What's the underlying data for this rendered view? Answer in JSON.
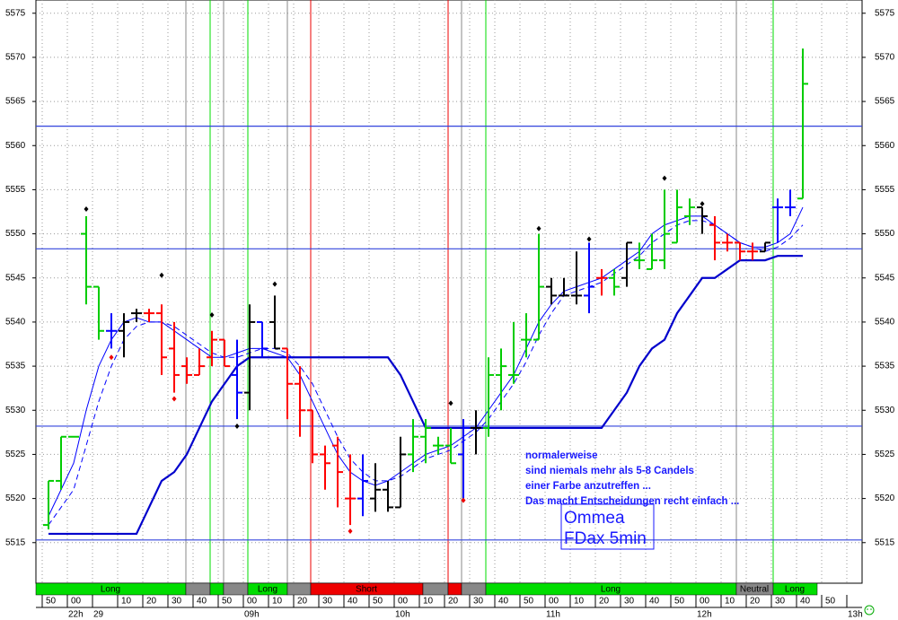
{
  "chart_data": {
    "type": "ohlc",
    "ylim": [
      5510.4,
      5576.5
    ],
    "yticks": [
      5515,
      5520,
      5525,
      5530,
      5535,
      5540,
      5545,
      5550,
      5555,
      5560,
      5565,
      5570,
      5575
    ],
    "grid": true,
    "categories": [
      "50",
      null,
      "00",
      null,
      null,
      null,
      "10",
      null,
      "20",
      null,
      "30",
      null,
      "40",
      null,
      "50",
      null,
      "00",
      null,
      "10",
      null,
      "20",
      null,
      "30",
      null,
      "40",
      null,
      "50",
      null,
      "00",
      null,
      "10",
      null,
      "20",
      null,
      "30",
      null,
      "40",
      null,
      "50",
      null,
      "00",
      null,
      "10",
      null,
      "20",
      null,
      "30",
      null,
      "40",
      null,
      "50",
      null,
      "00",
      null,
      "10",
      null,
      "20",
      null,
      "30",
      null,
      "40",
      null,
      "50",
      null,
      null,
      null
    ],
    "hour_labels": [
      null,
      null,
      "22h",
      null,
      "29",
      null,
      null,
      null,
      null,
      null,
      null,
      null,
      null,
      null,
      null,
      null,
      "09h",
      null,
      null,
      null,
      null,
      null,
      null,
      null,
      null,
      null,
      null,
      null,
      "10h",
      null,
      null,
      null,
      null,
      null,
      null,
      null,
      null,
      null,
      null,
      null,
      "11h",
      null,
      null,
      null,
      null,
      null,
      null,
      null,
      null,
      null,
      null,
      null,
      "12h",
      null,
      null,
      null,
      null,
      null,
      null,
      null,
      null,
      null,
      null,
      null,
      "13h",
      null
    ],
    "ohlc": [
      [
        5517,
        5522,
        5516.5,
        5522
      ],
      [
        5522,
        5527,
        5521,
        5527
      ],
      [
        5527,
        5527,
        5527,
        5527
      ],
      [
        5550,
        5552,
        5542,
        5544
      ],
      [
        5544,
        5544,
        5538,
        5539
      ],
      [
        5539,
        5541,
        5537,
        5539
      ],
      [
        5539,
        5541,
        5536,
        5540
      ],
      [
        5541,
        5541.5,
        5540,
        5541
      ],
      [
        5541,
        5541.5,
        5540,
        5541
      ],
      [
        5541,
        5542,
        5534,
        5536
      ],
      [
        5537,
        5540,
        5532,
        5534
      ],
      [
        5535,
        5536,
        5533,
        5534
      ],
      [
        5534,
        5537,
        5534,
        5535
      ],
      [
        5536,
        5539,
        5535,
        5538
      ],
      [
        5538,
        5538,
        5535,
        5535
      ],
      [
        5534,
        5538,
        5529,
        5532
      ],
      [
        5532,
        5542,
        5530,
        5540
      ],
      [
        5540,
        5540,
        5536,
        5537
      ],
      [
        5540,
        5543,
        5537,
        5537
      ],
      [
        5537,
        5537,
        5529,
        5533
      ],
      [
        5533,
        5535,
        5527,
        5530
      ],
      [
        5530,
        5530,
        5524,
        5525
      ],
      [
        5525,
        5526,
        5521,
        5524
      ],
      [
        5526,
        5527,
        5519,
        5523
      ],
      [
        5520,
        5525,
        5517,
        5520
      ],
      [
        5520,
        5525,
        5518,
        5522
      ],
      [
        5520,
        5524,
        5518.5,
        5521
      ],
      [
        5521,
        5522,
        5518.5,
        5519
      ],
      [
        5519,
        5527,
        5519,
        5525
      ],
      [
        5525,
        5529,
        5523,
        5527
      ],
      [
        5527,
        5529,
        5524,
        5528
      ],
      [
        5526,
        5527,
        5525,
        5526
      ],
      [
        5526,
        5528,
        5524,
        5524
      ],
      [
        5525,
        5529,
        5520,
        5528
      ],
      [
        5528,
        5530,
        5525,
        5528
      ],
      [
        5528,
        5536,
        5527,
        5534
      ],
      [
        5534,
        5537,
        5530,
        5535
      ],
      [
        5534,
        5540,
        5533,
        5534
      ],
      [
        5538,
        5541,
        5536,
        5538
      ],
      [
        5538,
        5550,
        5538,
        5544
      ],
      [
        5544,
        5545,
        5542,
        5543
      ],
      [
        5543,
        5545,
        5543,
        5543
      ],
      [
        5543,
        5548,
        5542,
        5543
      ],
      [
        5543,
        5549,
        5541,
        5544
      ],
      [
        5545,
        5546,
        5543,
        5545
      ],
      [
        5545,
        5546,
        5543,
        5544
      ],
      [
        5545,
        5549,
        5544,
        5549
      ],
      [
        5547,
        5549,
        5546,
        5547
      ],
      [
        5546,
        5550,
        5546,
        5547
      ],
      [
        5547,
        5555,
        5546,
        5550
      ],
      [
        5549,
        5555,
        5549,
        5553
      ],
      [
        5552,
        5554,
        5551,
        5553
      ],
      [
        5553,
        5553,
        5550,
        5552
      ],
      [
        5551,
        5552,
        5547,
        5549
      ],
      [
        5549,
        5550,
        5548,
        5549
      ],
      [
        5549,
        5549,
        5547,
        5548
      ],
      [
        5548,
        5549,
        5547,
        5548
      ],
      [
        5548,
        5549,
        5548,
        5549
      ],
      [
        5553,
        5554,
        5549,
        5553
      ],
      [
        5553,
        5555,
        5552,
        5553
      ],
      [
        5554,
        5571,
        5554,
        5567
      ],
      null,
      null,
      null,
      null,
      null
    ],
    "colors": [
      "#00cc00",
      "#00cc00",
      "#00cc00",
      "#00cc00",
      "#00cc00",
      "#0000ff",
      "#000000",
      "#000000",
      "#ff0000",
      "#ff0000",
      "#ff0000",
      "#ff0000",
      "#ff0000",
      "#ff0000",
      "#ff0000",
      "#0000ff",
      "#000000",
      "#0000ff",
      "#000000",
      "#ff0000",
      "#ff0000",
      "#ff0000",
      "#ff0000",
      "#ff0000",
      "#ff0000",
      "#0000ff",
      "#000000",
      "#000000",
      "#000000",
      "#00cc00",
      "#00cc00",
      "#00cc00",
      "#00cc00",
      "#0000ff",
      "#000000",
      "#00cc00",
      "#00cc00",
      "#00cc00",
      "#00cc00",
      "#00cc00",
      "#000000",
      "#000000",
      "#000000",
      "#0000ff",
      "#ff0000",
      "#00cc00",
      "#000000",
      "#00cc00",
      "#00cc00",
      "#00cc00",
      "#00cc00",
      "#00cc00",
      "#000000",
      "#ff0000",
      "#ff0000",
      "#ff0000",
      "#ff0000",
      "#000000",
      "#0000ff",
      "#0000ff",
      "#00cc00",
      null,
      null,
      null,
      null,
      null
    ],
    "ma_fast": {
      "color": "#0000ff",
      "values": [
        5518,
        5521,
        5524,
        5530,
        5535,
        5538,
        5540,
        5540.5,
        5540,
        5540,
        5539,
        5538,
        5537,
        5536,
        5536,
        5536.5,
        5537,
        5537,
        5536.5,
        5536,
        5534,
        5531,
        5528,
        5525,
        5523,
        5522,
        5521.5,
        5522,
        5523,
        5524,
        5525,
        5525.5,
        5526,
        5527,
        5528,
        5530,
        5532,
        5534,
        5537,
        5540,
        5542,
        5543.5,
        5544,
        5544.5,
        5545,
        5546,
        5547,
        5548,
        5550,
        5551,
        5551.5,
        5552,
        5552,
        5551,
        5550,
        5549,
        5548.5,
        5548.5,
        5549,
        5550,
        5553,
        null,
        null,
        null,
        null,
        null
      ]
    },
    "ma_slow": {
      "color": "#0000ff",
      "dashed": true,
      "values": [
        5517,
        5519,
        5521,
        5526,
        5531,
        5535,
        5538,
        5539.5,
        5540,
        5540,
        5539.5,
        5538.5,
        5537.5,
        5536.5,
        5536,
        5536,
        5536.5,
        5537,
        5537,
        5536.5,
        5535,
        5533,
        5530,
        5527,
        5524.5,
        5523,
        5522,
        5522,
        5522.5,
        5523.5,
        5524.5,
        5525,
        5525.5,
        5526.5,
        5527.5,
        5529,
        5531,
        5533,
        5535.5,
        5538.5,
        5541,
        5543,
        5543.5,
        5544,
        5544.5,
        5545.5,
        5546.5,
        5547.5,
        5549,
        5550,
        5551,
        5551.5,
        5551.5,
        5551,
        5550,
        5549,
        5548.5,
        5548,
        5548.5,
        5549.5,
        5551,
        null,
        null,
        null,
        null,
        null
      ]
    },
    "trend": {
      "color": "#0000cc",
      "values": [
        5516,
        5516,
        5516,
        5516,
        5516,
        5516,
        5516,
        5516,
        5519,
        5522,
        5523,
        5525,
        5528,
        5531,
        5533,
        5535,
        5536,
        5536,
        5536,
        5536,
        5536,
        5536,
        5536,
        5536,
        5536,
        5536,
        5536,
        5536,
        5534,
        5531,
        5528,
        5528,
        5528,
        5528,
        5528,
        5528,
        5528,
        5528,
        5528,
        5528,
        5528,
        5528,
        5528,
        5528,
        5528,
        5530,
        5532,
        5535,
        5537,
        5538,
        5541,
        5543,
        5545,
        5545,
        5546,
        5547,
        5547,
        5547,
        5547.5,
        5547.5,
        5547.5,
        null,
        null,
        null,
        null,
        null
      ]
    },
    "markers_black": [
      null,
      null,
      null,
      5552.8,
      null,
      null,
      null,
      null,
      null,
      5545.3,
      null,
      null,
      null,
      5540.8,
      null,
      5528.2,
      null,
      null,
      5544.3,
      null,
      null,
      null,
      null,
      null,
      null,
      null,
      null,
      null,
      null,
      null,
      null,
      null,
      5530.8,
      null,
      null,
      null,
      null,
      null,
      null,
      5550.6,
      null,
      null,
      null,
      5549.4,
      null,
      null,
      null,
      null,
      null,
      5556.3,
      null,
      null,
      5553.4,
      null,
      null,
      null,
      null,
      null,
      null,
      null,
      null,
      null,
      null,
      null,
      null,
      null
    ],
    "markers_red": [
      null,
      null,
      null,
      null,
      null,
      5536,
      null,
      null,
      null,
      null,
      5531.3,
      null,
      null,
      null,
      null,
      null,
      null,
      null,
      null,
      null,
      null,
      null,
      null,
      null,
      5516.3,
      null,
      null,
      null,
      null,
      null,
      null,
      null,
      null,
      5519.8,
      null,
      null,
      null,
      null,
      null,
      null,
      null,
      null,
      null,
      null,
      null,
      null,
      null,
      null,
      null,
      null,
      null,
      null,
      null,
      null,
      null,
      null,
      null,
      null,
      null,
      null,
      null,
      null,
      null,
      null,
      null,
      null
    ],
    "levels": [
      5562.2,
      5548.3,
      5528.2,
      5515.3
    ],
    "level_color": "#3344dd",
    "signal_labels": [
      "Long",
      "Long",
      "Short",
      "Long",
      "Neutral",
      "Long"
    ],
    "annotations": [
      "normalerweise",
      "sind niemals mehr als 5-8 Candels",
      "einer Farbe anzutreffen ...",
      "Das macht Entscheidungen recht einfach ..."
    ],
    "label_box": [
      "Ommea",
      "FDax 5min"
    ]
  }
}
